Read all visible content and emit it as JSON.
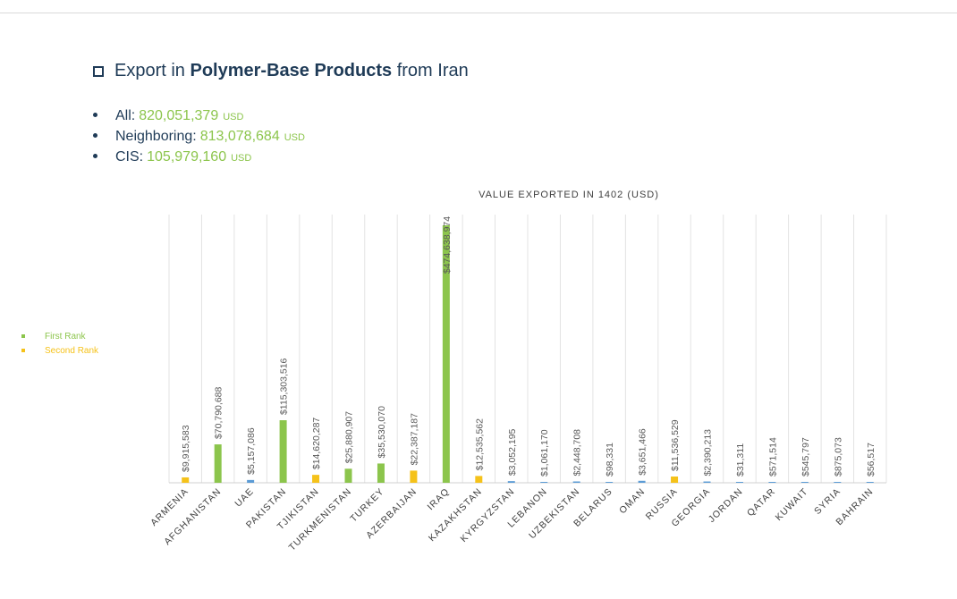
{
  "heading": {
    "prefix": "Export in",
    "bold": "Polymer-Base Products",
    "suffix": "from Iran"
  },
  "stats": [
    {
      "label": "All:",
      "value": "820,051,379",
      "unit": "USD"
    },
    {
      "label": "Neighboring:",
      "value": "813,078,684",
      "unit": "USD"
    },
    {
      "label": "CIS:",
      "value": "105,979,160",
      "unit": "USD"
    }
  ],
  "legend": [
    {
      "label": "First Rank",
      "color": "#8cc54c"
    },
    {
      "label": "Second Rank",
      "color": "#f5c21a"
    }
  ],
  "chart_data": {
    "type": "bar",
    "title": "VALUE EXPORTED IN 1402 (USD)",
    "categories": [
      "ARMENIA",
      "AFGHANISTAN",
      "UAE",
      "PAKISTAN",
      "TJIKISTAN",
      "TURKMENISTAN",
      "TURKEY",
      "AZERBAIJAN",
      "IRAQ",
      "KAZAKHSTAN",
      "KYRGYZSTAN",
      "LEBANON",
      "UZBEKISTAN",
      "BELARUS",
      "OMAN",
      "RUSSIA",
      "GEORGIA",
      "JORDAN",
      "QATAR",
      "KUWAIT",
      "SYRIA",
      "BAHRAIN"
    ],
    "values": [
      9915583,
      70790688,
      5157086,
      115303516,
      14620287,
      25880907,
      35530070,
      22387187,
      474638974,
      12535562,
      3052195,
      1061170,
      2448708,
      98331,
      3651466,
      11536529,
      2390213,
      31311,
      571514,
      545797,
      875073,
      56517
    ],
    "data_labels": [
      "$9,915,583",
      "$70,790,688",
      "$5,157,086",
      "$115,303,516",
      "$14,620,287",
      "$25,880,907",
      "$35,530,070",
      "$22,387,187",
      "$474,638,974",
      "$12,535,562",
      "$3,052,195",
      "$1,061,170",
      "$2,448,708",
      "$98,331",
      "$3,651,466",
      "$11,536,529",
      "$2,390,213",
      "$31,311",
      "$571,514",
      "$545,797",
      "$875,073",
      "$56,517"
    ],
    "colors": [
      "#f5c21a",
      "#8cc54c",
      "#5b9bd5",
      "#8cc54c",
      "#f5c21a",
      "#8cc54c",
      "#8cc54c",
      "#f5c21a",
      "#8cc54c",
      "#f5c21a",
      "#5b9bd5",
      "#5b9bd5",
      "#5b9bd5",
      "#5b9bd5",
      "#5b9bd5",
      "#f5c21a",
      "#5b9bd5",
      "#5b9bd5",
      "#5b9bd5",
      "#5b9bd5",
      "#5b9bd5",
      "#5b9bd5"
    ],
    "ylim": [
      0,
      474638974
    ],
    "grid": true,
    "legend_position": "left"
  }
}
